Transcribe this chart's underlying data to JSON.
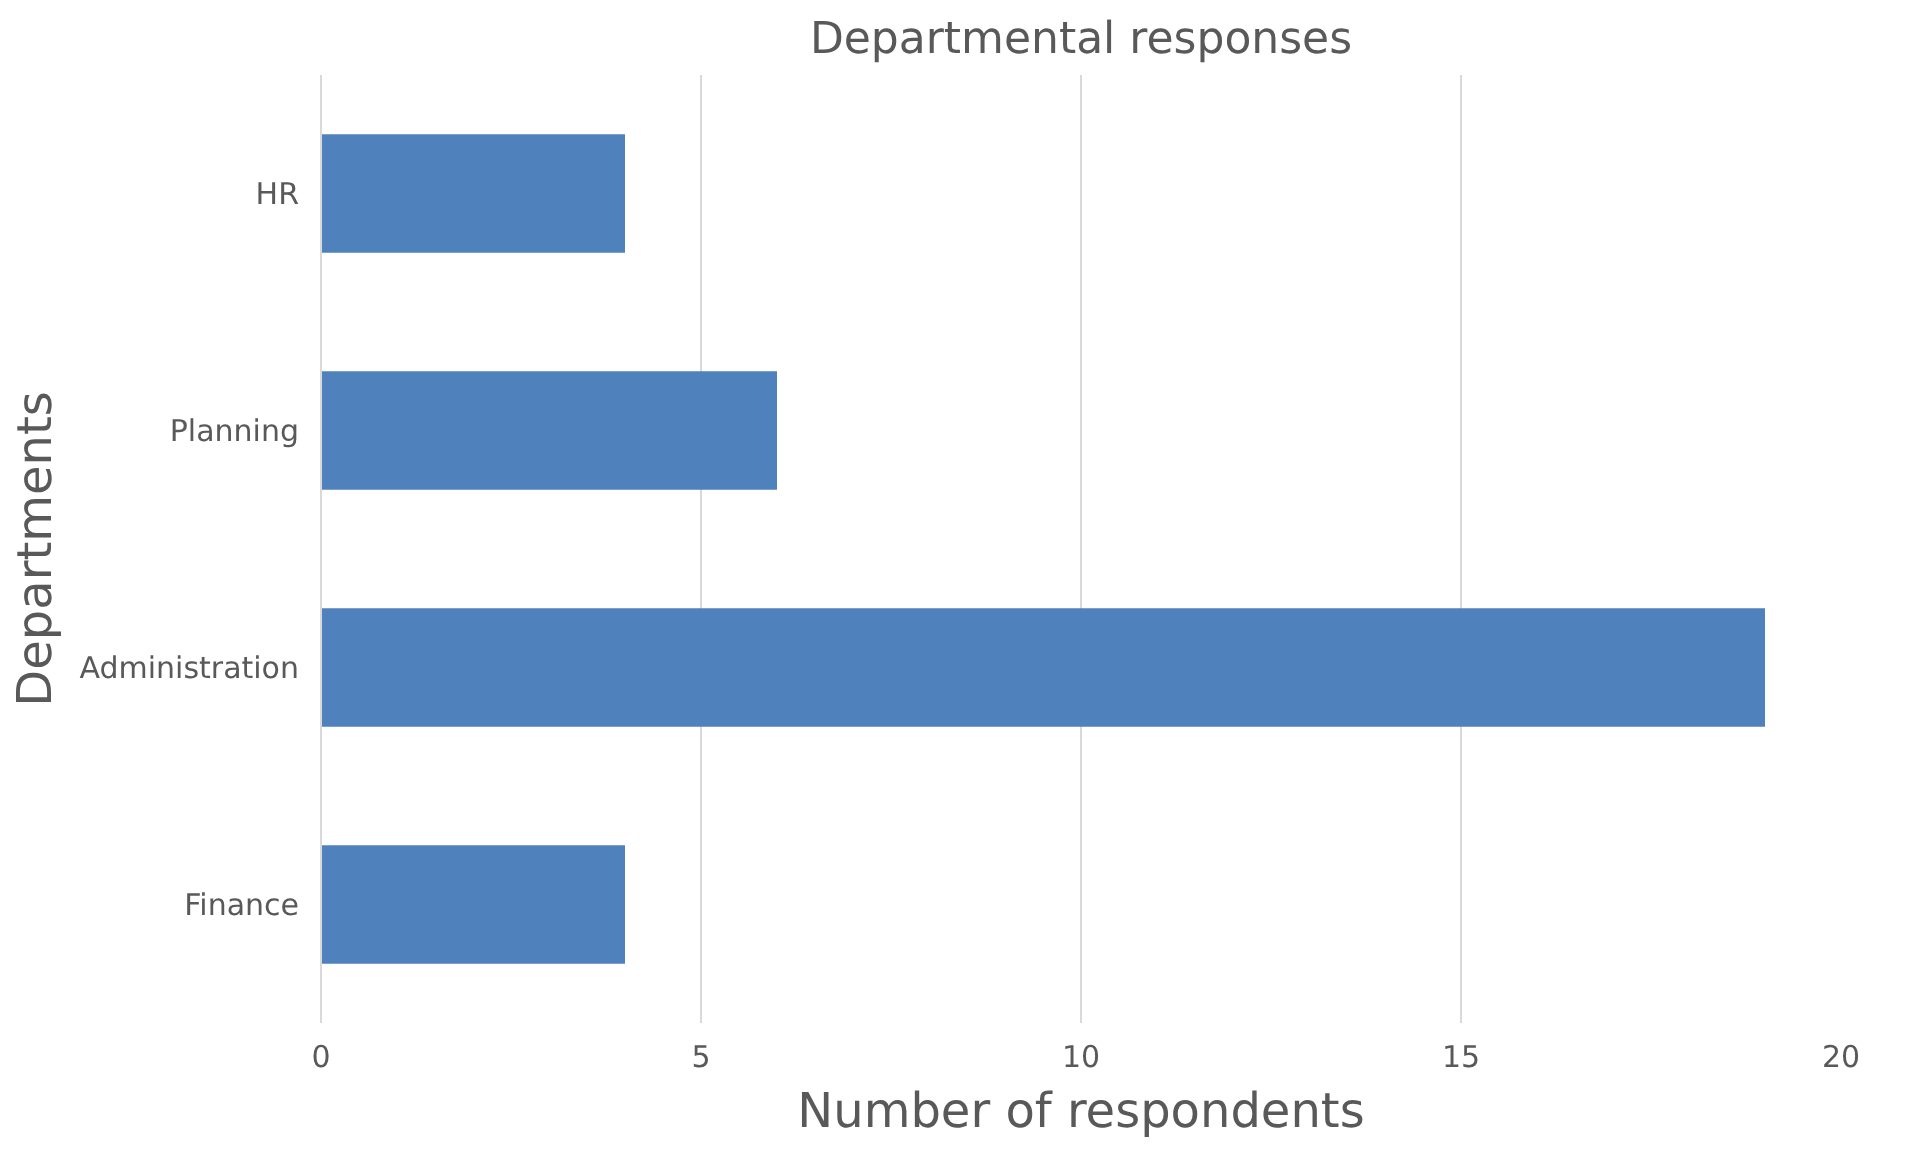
{
  "chart_data": {
    "type": "bar",
    "orientation": "horizontal",
    "title": "Departmental responses",
    "xlabel": "Number of respondents",
    "ylabel": "Departments",
    "categories": [
      "HR",
      "Planning",
      "Administration",
      "Finance"
    ],
    "values": [
      4,
      6,
      19,
      4
    ],
    "color": "#4f81bd",
    "xlim": [
      0,
      20
    ],
    "xticks": [
      0,
      5,
      10,
      15,
      20
    ],
    "grid": "x"
  }
}
